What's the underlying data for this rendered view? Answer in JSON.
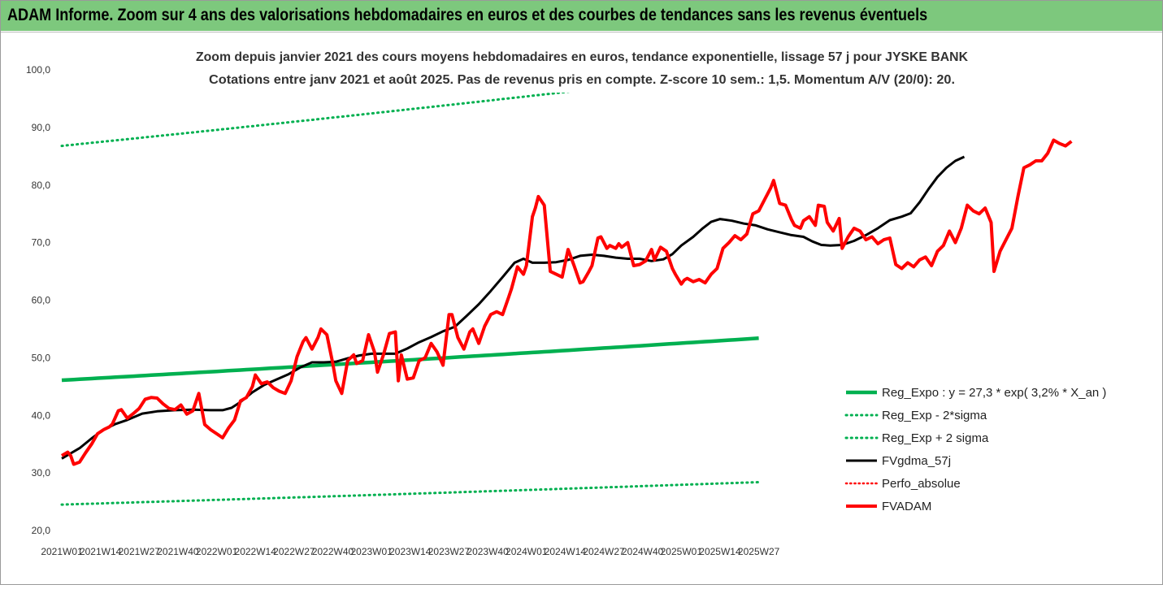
{
  "banner": {
    "title": "ADAM Informe. Zoom sur 4 ans des valorisations hebdomadaires en euros et des courbes de tendances sans les revenus éventuels"
  },
  "chart_data": {
    "type": "line",
    "title": "Zoom depuis janvier 2021 des cours moyens hebdomadaires en euros, tendance exponentielle, lissage 57 j pour JYSKE BANK",
    "subtitle": "Cotations entre janv 2021 et août 2025.  Pas de revenus pris en compte. Z-score 10 sem.: 1,5. Momentum A/V (20/0): 20.",
    "grid": false,
    "legend_position": "right",
    "ylim": [
      20,
      100
    ],
    "yticks": [
      "20,0",
      "30,0",
      "40,0",
      "50,0",
      "60,0",
      "70,0",
      "80,0",
      "90,0",
      "100,0"
    ],
    "xticks": [
      "2021W01",
      "2021W14",
      "2021W27",
      "2021W40",
      "2022W01",
      "2022W14",
      "2022W27",
      "2022W40",
      "2023W01",
      "2023W14",
      "2023W27",
      "2023W40",
      "2024W01",
      "2024W14",
      "2024W27",
      "2024W40",
      "2025W01",
      "2025W14",
      "2025W27"
    ],
    "series": [
      {
        "name": "Reg_Expo : y = 27,3 * exp( 3,2% *  X_an )",
        "color": "#00b050",
        "style": "solid",
        "points": [
          [
            0,
            46.1
          ],
          [
            234,
            53.4
          ]
        ]
      },
      {
        "name": "Reg_Exp - 2*sigma",
        "color": "#00b050",
        "style": "dotted",
        "points": [
          [
            0,
            24.5
          ],
          [
            234,
            28.4
          ]
        ]
      },
      {
        "name": "Reg_Exp + 2 sigma",
        "color": "#00b050",
        "style": "dotted",
        "points": [
          [
            0,
            86.8
          ],
          [
            234,
            100.0
          ]
        ]
      },
      {
        "name": "FVgdma_57j",
        "color": "#000000",
        "style": "solid",
        "points": [
          [
            0,
            32.5
          ],
          [
            3,
            33.4
          ],
          [
            6,
            34.3
          ],
          [
            10,
            36.0
          ],
          [
            14,
            37.5
          ],
          [
            18,
            38.5
          ],
          [
            22,
            39.2
          ],
          [
            27,
            40.3
          ],
          [
            32,
            40.7
          ],
          [
            38,
            40.9
          ],
          [
            44,
            41.0
          ],
          [
            50,
            40.9
          ],
          [
            54,
            40.9
          ],
          [
            57,
            41.3
          ],
          [
            60,
            42.3
          ],
          [
            64,
            44.0
          ],
          [
            68,
            45.3
          ],
          [
            72,
            46.2
          ],
          [
            76,
            47.1
          ],
          [
            80,
            48.3
          ],
          [
            84,
            49.2
          ],
          [
            88,
            49.2
          ],
          [
            92,
            49.3
          ],
          [
            96,
            49.9
          ],
          [
            100,
            50.4
          ],
          [
            104,
            50.7
          ],
          [
            108,
            50.7
          ],
          [
            112,
            50.7
          ],
          [
            116,
            51.6
          ],
          [
            120,
            52.7
          ],
          [
            124,
            53.6
          ],
          [
            128,
            54.6
          ],
          [
            132,
            55.4
          ],
          [
            136,
            57.3
          ],
          [
            140,
            59.3
          ],
          [
            144,
            61.6
          ],
          [
            148,
            64.0
          ],
          [
            152,
            66.5
          ],
          [
            155,
            67.2
          ],
          [
            158,
            66.5
          ],
          [
            162,
            66.5
          ],
          [
            166,
            66.6
          ],
          [
            170,
            67.0
          ],
          [
            174,
            67.7
          ],
          [
            178,
            67.9
          ],
          [
            182,
            67.7
          ],
          [
            186,
            67.4
          ],
          [
            190,
            67.2
          ],
          [
            194,
            67.2
          ],
          [
            198,
            66.8
          ],
          [
            202,
            67.1
          ],
          [
            205,
            68.0
          ],
          [
            208,
            69.5
          ],
          [
            212,
            71.0
          ],
          [
            215,
            72.4
          ],
          [
            218,
            73.6
          ],
          [
            221,
            74.1
          ],
          [
            225,
            73.8
          ],
          [
            229,
            73.3
          ],
          [
            233,
            73.0
          ],
          [
            237,
            72.3
          ],
          [
            241,
            71.8
          ],
          [
            245,
            71.3
          ],
          [
            249,
            71.0
          ],
          [
            252,
            70.2
          ],
          [
            255,
            69.6
          ],
          [
            258,
            69.5
          ],
          [
            262,
            69.6
          ],
          [
            266,
            70.3
          ],
          [
            270,
            71.3
          ],
          [
            274,
            72.5
          ],
          [
            278,
            73.9
          ],
          [
            282,
            74.5
          ],
          [
            285,
            75.1
          ],
          [
            288,
            77.0
          ],
          [
            291,
            79.3
          ],
          [
            294,
            81.4
          ],
          [
            297,
            83.0
          ],
          [
            300,
            84.2
          ],
          [
            303,
            84.9
          ]
        ]
      },
      {
        "name": "Perfo_absolue",
        "color": "#ff0000",
        "style": "dotted",
        "points": []
      },
      {
        "name": "FVADAM",
        "color": "#ff0000",
        "style": "solid",
        "points": [
          [
            0,
            33.0
          ],
          [
            2,
            33.6
          ],
          [
            3,
            33.0
          ],
          [
            4,
            31.5
          ],
          [
            6,
            31.9
          ],
          [
            8,
            33.5
          ],
          [
            10,
            35.0
          ],
          [
            12,
            36.8
          ],
          [
            14,
            37.5
          ],
          [
            16,
            38.0
          ],
          [
            17,
            38.5
          ],
          [
            19,
            40.8
          ],
          [
            20,
            41.0
          ],
          [
            22,
            39.5
          ],
          [
            24,
            40.3
          ],
          [
            26,
            41.2
          ],
          [
            28,
            42.8
          ],
          [
            30,
            43.1
          ],
          [
            32,
            43.0
          ],
          [
            34,
            42.0
          ],
          [
            36,
            41.2
          ],
          [
            38,
            41.0
          ],
          [
            40,
            41.8
          ],
          [
            42,
            40.2
          ],
          [
            44,
            40.8
          ],
          [
            46,
            43.8
          ],
          [
            48,
            38.4
          ],
          [
            50,
            37.5
          ],
          [
            52,
            36.8
          ],
          [
            54,
            36.1
          ],
          [
            56,
            37.8
          ],
          [
            58,
            39.2
          ],
          [
            60,
            42.5
          ],
          [
            62,
            43.1
          ],
          [
            64,
            45.0
          ],
          [
            65,
            47.0
          ],
          [
            67,
            45.5
          ],
          [
            69,
            45.8
          ],
          [
            71,
            44.8
          ],
          [
            73,
            44.2
          ],
          [
            75,
            43.8
          ],
          [
            77,
            46.0
          ],
          [
            79,
            50.2
          ],
          [
            81,
            52.8
          ],
          [
            82,
            53.5
          ],
          [
            84,
            51.5
          ],
          [
            86,
            53.5
          ],
          [
            87,
            55.0
          ],
          [
            89,
            54.0
          ],
          [
            91,
            49.0
          ],
          [
            92,
            46.0
          ],
          [
            94,
            43.8
          ],
          [
            96,
            49.5
          ],
          [
            98,
            50.5
          ],
          [
            99,
            49.0
          ],
          [
            101,
            49.5
          ],
          [
            103,
            54.0
          ],
          [
            105,
            51.0
          ],
          [
            106,
            47.5
          ],
          [
            108,
            50.5
          ],
          [
            110,
            54.2
          ],
          [
            112,
            54.5
          ],
          [
            113,
            46.0
          ],
          [
            114,
            50.5
          ],
          [
            116,
            46.3
          ],
          [
            118,
            46.5
          ],
          [
            120,
            49.5
          ],
          [
            122,
            50.0
          ],
          [
            124,
            52.5
          ],
          [
            126,
            51.0
          ],
          [
            128,
            48.7
          ],
          [
            130,
            57.5
          ],
          [
            131,
            57.5
          ],
          [
            133,
            53.5
          ],
          [
            135,
            51.5
          ],
          [
            137,
            54.5
          ],
          [
            138,
            55.0
          ],
          [
            140,
            52.5
          ],
          [
            142,
            55.5
          ],
          [
            144,
            57.5
          ],
          [
            146,
            58.0
          ],
          [
            148,
            57.5
          ],
          [
            150,
            60.5
          ],
          [
            151,
            62.0
          ],
          [
            153,
            65.8
          ],
          [
            155,
            64.5
          ],
          [
            156,
            66.0
          ],
          [
            158,
            74.5
          ],
          [
            159,
            76.0
          ],
          [
            160,
            78.0
          ],
          [
            162,
            76.5
          ],
          [
            164,
            65.0
          ],
          [
            166,
            64.5
          ],
          [
            168,
            64.0
          ],
          [
            170,
            68.8
          ],
          [
            172,
            66.0
          ],
          [
            174,
            63.0
          ],
          [
            175,
            63.2
          ],
          [
            177,
            65.0
          ],
          [
            178,
            66.0
          ],
          [
            180,
            70.8
          ],
          [
            181,
            71.0
          ],
          [
            183,
            69.0
          ],
          [
            184,
            69.5
          ],
          [
            186,
            69.0
          ],
          [
            187,
            69.8
          ],
          [
            188,
            69.2
          ],
          [
            190,
            70.0
          ],
          [
            192,
            66.0
          ],
          [
            194,
            66.2
          ],
          [
            196,
            66.8
          ],
          [
            198,
            68.8
          ],
          [
            199,
            67.0
          ],
          [
            201,
            69.2
          ],
          [
            203,
            68.5
          ],
          [
            205,
            65.5
          ],
          [
            206,
            64.5
          ],
          [
            208,
            62.8
          ],
          [
            209,
            63.5
          ],
          [
            210,
            63.8
          ],
          [
            212,
            63.2
          ],
          [
            214,
            63.6
          ],
          [
            216,
            63.0
          ],
          [
            218,
            64.5
          ],
          [
            220,
            65.5
          ],
          [
            222,
            69.0
          ],
          [
            224,
            70.0
          ],
          [
            226,
            71.2
          ],
          [
            228,
            70.5
          ],
          [
            230,
            71.5
          ],
          [
            232,
            75.0
          ],
          [
            234,
            75.5
          ],
          [
            236,
            77.5
          ],
          [
            238,
            79.5
          ],
          [
            239,
            80.8
          ],
          [
            241,
            76.8
          ],
          [
            243,
            76.5
          ],
          [
            245,
            74.0
          ],
          [
            246,
            73.0
          ],
          [
            248,
            72.5
          ],
          [
            249,
            73.8
          ],
          [
            251,
            74.5
          ],
          [
            253,
            73.0
          ],
          [
            254,
            76.5
          ],
          [
            256,
            76.3
          ],
          [
            257,
            73.5
          ],
          [
            259,
            72.0
          ],
          [
            261,
            74.2
          ],
          [
            262,
            69.0
          ],
          [
            264,
            71.0
          ],
          [
            266,
            72.5
          ],
          [
            268,
            72.0
          ],
          [
            270,
            70.5
          ],
          [
            272,
            71.0
          ],
          [
            274,
            69.8
          ],
          [
            276,
            70.5
          ],
          [
            278,
            70.8
          ],
          [
            280,
            66.2
          ],
          [
            282,
            65.5
          ],
          [
            284,
            66.5
          ],
          [
            286,
            65.8
          ],
          [
            288,
            67.0
          ],
          [
            290,
            67.5
          ],
          [
            292,
            66.0
          ],
          [
            294,
            68.5
          ],
          [
            296,
            69.5
          ],
          [
            298,
            72.0
          ],
          [
            300,
            70.0
          ],
          [
            302,
            72.5
          ],
          [
            304,
            76.5
          ],
          [
            306,
            75.5
          ],
          [
            308,
            75.0
          ],
          [
            310,
            76.0
          ],
          [
            312,
            73.5
          ],
          [
            313,
            65.0
          ],
          [
            315,
            68.5
          ],
          [
            317,
            70.5
          ],
          [
            319,
            72.5
          ],
          [
            321,
            78.0
          ],
          [
            323,
            83.0
          ],
          [
            325,
            83.5
          ],
          [
            327,
            84.2
          ],
          [
            329,
            84.2
          ],
          [
            331,
            85.5
          ],
          [
            333,
            87.8
          ],
          [
            335,
            87.2
          ],
          [
            337,
            86.8
          ],
          [
            339,
            87.6
          ]
        ]
      }
    ]
  }
}
